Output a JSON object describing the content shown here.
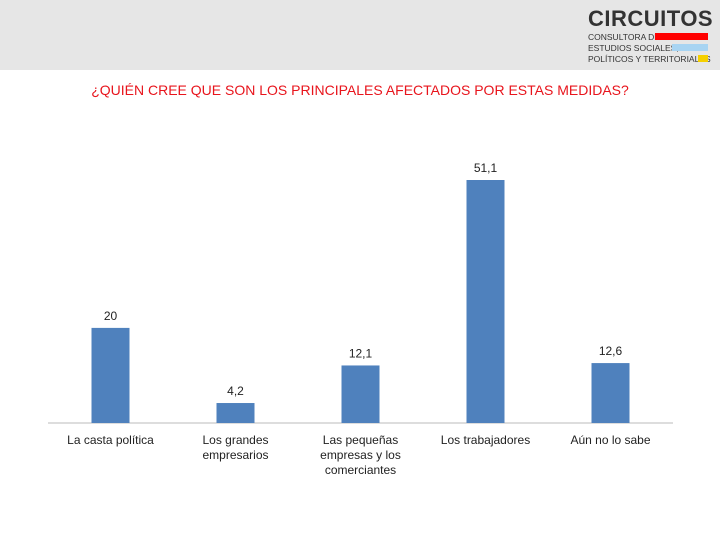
{
  "header": {
    "logo": "CIRCUITOS",
    "tagline": [
      "CONSULTORA DE",
      "ESTUDIOS SOCIALES,",
      "POLÍTICOS Y TERRITORIALES"
    ]
  },
  "chart_data": {
    "type": "bar",
    "title": "¿QUIÉN CREE QUE SON LOS PRINCIPALES AFECTADOS POR ESTAS MEDIDAS?",
    "categories": [
      "La casta política",
      "Los grandes empresarios",
      "Las pequeñas empresas y los comerciantes",
      "Los trabajadores",
      "Aún no lo sabe"
    ],
    "values": [
      20,
      4.2,
      12.1,
      51.1,
      12.6
    ],
    "value_labels": [
      "20",
      "4,2",
      "12,1",
      "51,1",
      "12,6"
    ],
    "color": "#4f81bd"
  }
}
